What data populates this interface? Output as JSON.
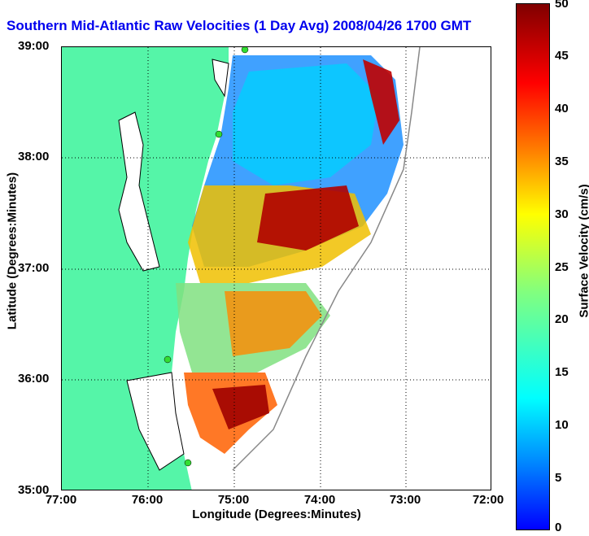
{
  "title": "Southern Mid-Atlantic Raw Velocities (1 Day Avg) 2008/04/26 1700 GMT",
  "axes": {
    "xlabel": "Longitude (Degrees:Minutes)",
    "ylabel": "Latitude (Degrees:Minutes)",
    "xticks": [
      "77:00",
      "76:00",
      "75:00",
      "74:00",
      "73:00",
      "72:00"
    ],
    "yticks": [
      "39:00",
      "38:00",
      "37:00",
      "36:00",
      "35:00"
    ]
  },
  "colorbar": {
    "label": "Surface Velocity (cm/s)",
    "ticks": [
      "50",
      "45",
      "40",
      "35",
      "30",
      "25",
      "20",
      "15",
      "10",
      "5",
      "0"
    ],
    "range": [
      0,
      50
    ]
  },
  "colors": {
    "land": "#55f5a8",
    "water": "#ffffff",
    "title": "#0000ee",
    "station": "#33dd33"
  }
}
